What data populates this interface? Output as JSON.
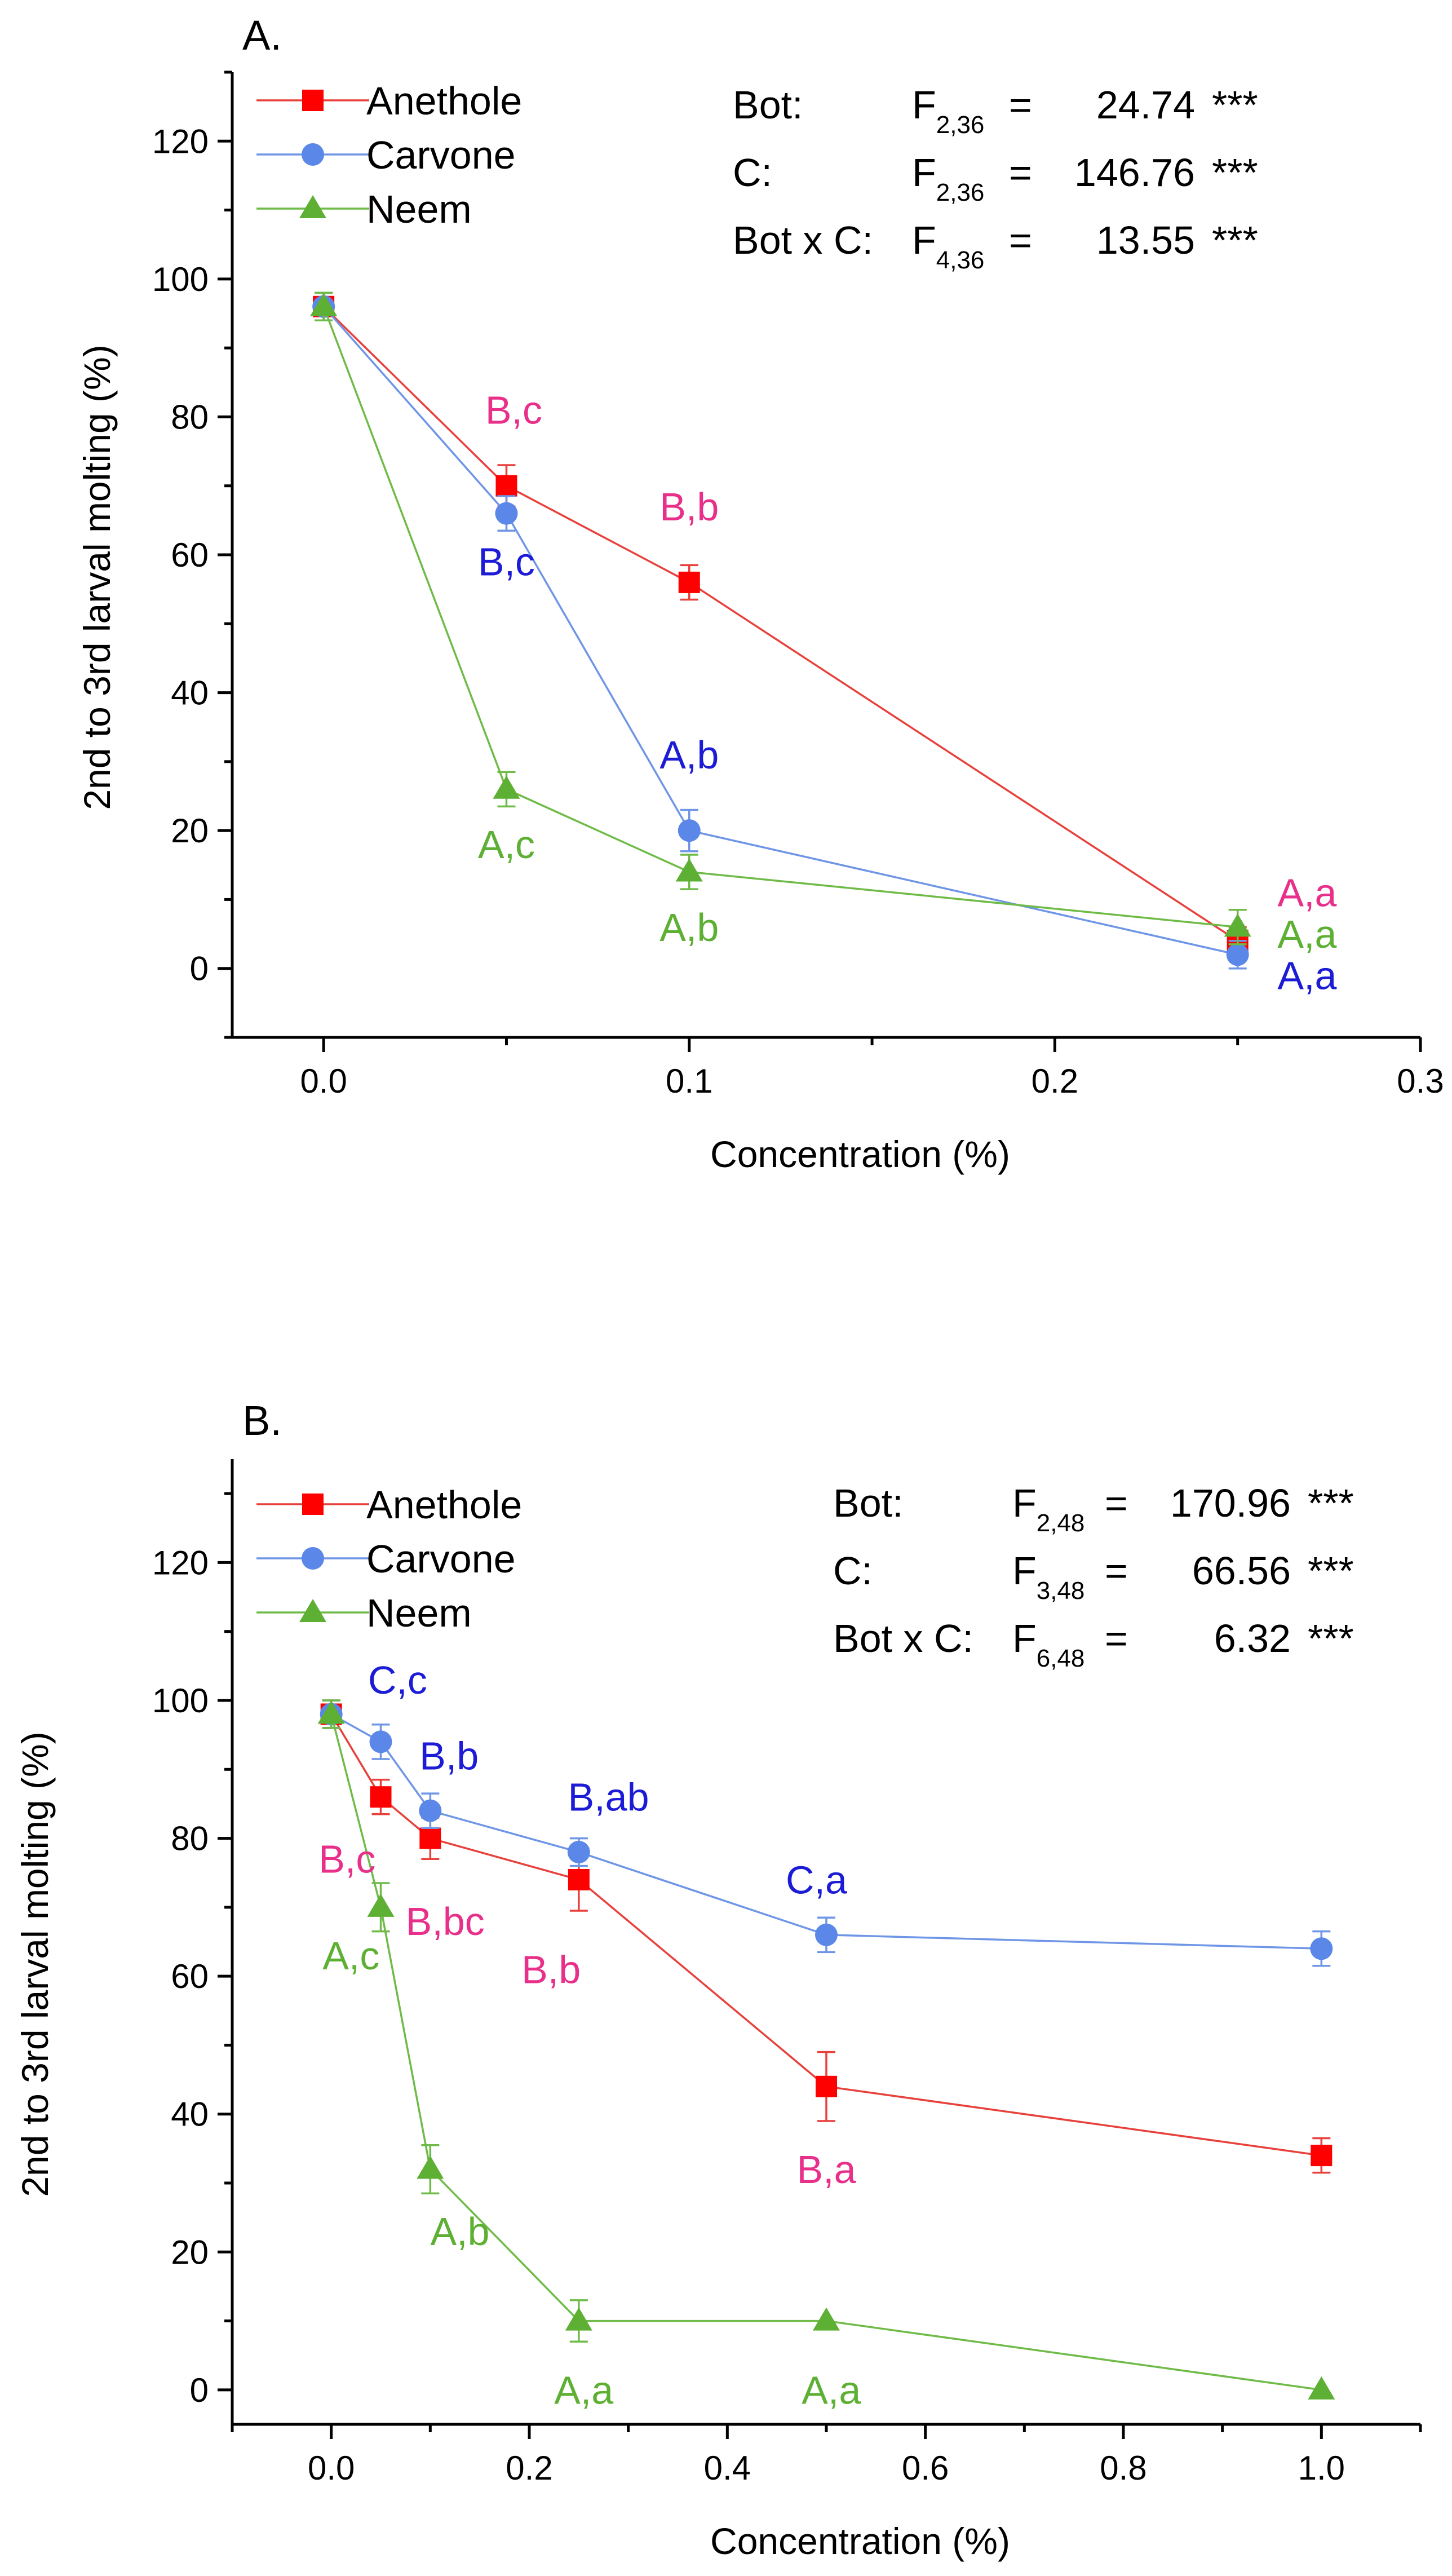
{
  "chart_data": [
    {
      "type": "line",
      "panel_label": "A.",
      "xlabel": "Concentration (%)",
      "ylabel": "2nd to 3rd larval molting (%)",
      "xlim": [
        -0.025,
        0.3
      ],
      "ylim": [
        -10,
        130
      ],
      "xticks": [
        0.0,
        0.1,
        0.2,
        0.3
      ],
      "xtick_labels": [
        "0.0",
        "0.1",
        "0.2",
        "0.3"
      ],
      "yticks": [
        0,
        20,
        40,
        60,
        80,
        100,
        120
      ],
      "ytick_labels": [
        "0",
        "20",
        "40",
        "60",
        "80",
        "100",
        "120"
      ],
      "legend_position": "top-left",
      "series": [
        {
          "name": "Anethole",
          "color": "#ff0000",
          "line_color": "#e8413c",
          "marker": "square",
          "x": [
            0,
            0.05,
            0.1,
            0.25
          ],
          "y": [
            96,
            70,
            56,
            4
          ],
          "err": [
            2.0,
            3.0,
            2.5,
            2.0
          ]
        },
        {
          "name": "Carvone",
          "color": "#5b87e8",
          "line_color": "#6f95e6",
          "marker": "circle",
          "x": [
            0,
            0.05,
            0.1,
            0.25
          ],
          "y": [
            96,
            66,
            20,
            2
          ],
          "err": [
            2.0,
            2.5,
            3.0,
            2.0
          ]
        },
        {
          "name": "Neem",
          "color": "#5db034",
          "line_color": "#6fbb48",
          "marker": "triangle",
          "x": [
            0,
            0.05,
            0.1,
            0.25
          ],
          "y": [
            96,
            26,
            14,
            6
          ],
          "err": [
            2.0,
            2.5,
            2.5,
            2.5
          ]
        }
      ],
      "stats": [
        {
          "label": "Bot:",
          "f_sub": "2,36",
          "eq": "=",
          "value": "24.74",
          "sig": "***"
        },
        {
          "label": "C:",
          "f_sub": "2,36",
          "eq": "=",
          "value": "146.76",
          "sig": "***"
        },
        {
          "label": "Bot x C:",
          "f_sub": "4,36",
          "eq": "=",
          "value": "13.55",
          "sig": "***"
        }
      ],
      "annotations": [
        {
          "text": "B,c",
          "color": "#e8308a",
          "x": 0.052,
          "y": 79
        },
        {
          "text": "B,c",
          "color": "#1c1cd6",
          "x": 0.05,
          "y": 57
        },
        {
          "text": "B,b",
          "color": "#e8308a",
          "x": 0.1,
          "y": 65
        },
        {
          "text": "A,b",
          "color": "#1c1cd6",
          "x": 0.1,
          "y": 29
        },
        {
          "text": "A,c",
          "color": "#5db034",
          "x": 0.05,
          "y": 16
        },
        {
          "text": "A,b",
          "color": "#5db034",
          "x": 0.1,
          "y": 4
        },
        {
          "text": "A,a",
          "color": "#e8308a",
          "x": 0.269,
          "y": 9
        },
        {
          "text": "A,a",
          "color": "#5db034",
          "x": 0.269,
          "y": 3
        },
        {
          "text": "A,a",
          "color": "#1c1cd6",
          "x": 0.269,
          "y": -3
        }
      ]
    },
    {
      "type": "line",
      "panel_label": "B.",
      "xlabel": "Concentration (%)",
      "ylabel": "2nd to 3rd larval molting (%)",
      "xlim": [
        -0.1,
        1.1
      ],
      "ylim": [
        -5,
        135
      ],
      "xticks": [
        0.0,
        0.2,
        0.4,
        0.6,
        0.8,
        1.0
      ],
      "xtick_labels": [
        "0.0",
        "0.2",
        "0.4",
        "0.6",
        "0.8",
        "1.0"
      ],
      "yticks": [
        0,
        20,
        40,
        60,
        80,
        100,
        120
      ],
      "ytick_labels": [
        "0",
        "20",
        "40",
        "60",
        "80",
        "100",
        "120"
      ],
      "legend_position": "top-left",
      "series": [
        {
          "name": "Anethole",
          "color": "#ff0000",
          "line_color": "#e8413c",
          "marker": "square",
          "x": [
            0,
            0.05,
            0.1,
            0.25,
            0.5,
            1.0
          ],
          "y": [
            98,
            86,
            80,
            74,
            44,
            34
          ],
          "err": [
            2.0,
            2.5,
            3.0,
            4.5,
            5.0,
            2.5
          ]
        },
        {
          "name": "Carvone",
          "color": "#5b87e8",
          "line_color": "#6f95e6",
          "marker": "circle",
          "x": [
            0,
            0.05,
            0.1,
            0.25,
            0.5,
            1.0
          ],
          "y": [
            98,
            94,
            84,
            78,
            66,
            64
          ],
          "err": [
            2.0,
            2.5,
            2.5,
            2.0,
            2.5,
            2.5
          ]
        },
        {
          "name": "Neem",
          "color": "#5db034",
          "line_color": "#6fbb48",
          "marker": "triangle",
          "x": [
            0,
            0.05,
            0.1,
            0.25,
            0.5,
            1.0
          ],
          "y": [
            98,
            70,
            32,
            10,
            10,
            0
          ],
          "err": [
            2.0,
            3.5,
            3.5,
            3.0,
            0,
            0
          ]
        }
      ],
      "stats": [
        {
          "label": "Bot:",
          "f_sub": "2,48",
          "eq": "=",
          "value": "170.96",
          "sig": "***"
        },
        {
          "label": "C:",
          "f_sub": "3,48",
          "eq": "=",
          "value": "66.56",
          "sig": "***"
        },
        {
          "label": "Bot x C:",
          "f_sub": "6,48",
          "eq": "=",
          "value": "6.32",
          "sig": "***"
        }
      ],
      "annotations": [
        {
          "text": "C,c",
          "color": "#1c1cd6",
          "x": 0.067,
          "y": 101
        },
        {
          "text": "B,b",
          "color": "#1c1cd6",
          "x": 0.119,
          "y": 90
        },
        {
          "text": "B,ab",
          "color": "#1c1cd6",
          "x": 0.28,
          "y": 84
        },
        {
          "text": "C,a",
          "color": "#1c1cd6",
          "x": 0.49,
          "y": 72
        },
        {
          "text": "B,c",
          "color": "#e8308a",
          "x": 0.016,
          "y": 75
        },
        {
          "text": "B,bc",
          "color": "#e8308a",
          "x": 0.115,
          "y": 66
        },
        {
          "text": "B,b",
          "color": "#e8308a",
          "x": 0.222,
          "y": 59
        },
        {
          "text": "B,a",
          "color": "#e8308a",
          "x": 0.5,
          "y": 30
        },
        {
          "text": "A,c",
          "color": "#5db034",
          "x": 0.02,
          "y": 61
        },
        {
          "text": "A,b",
          "color": "#5db034",
          "x": 0.13,
          "y": 21
        },
        {
          "text": "A,a",
          "color": "#5db034",
          "x": 0.255,
          "y": -2
        },
        {
          "text": "A,a",
          "color": "#5db034",
          "x": 0.505,
          "y": -2
        }
      ]
    }
  ]
}
